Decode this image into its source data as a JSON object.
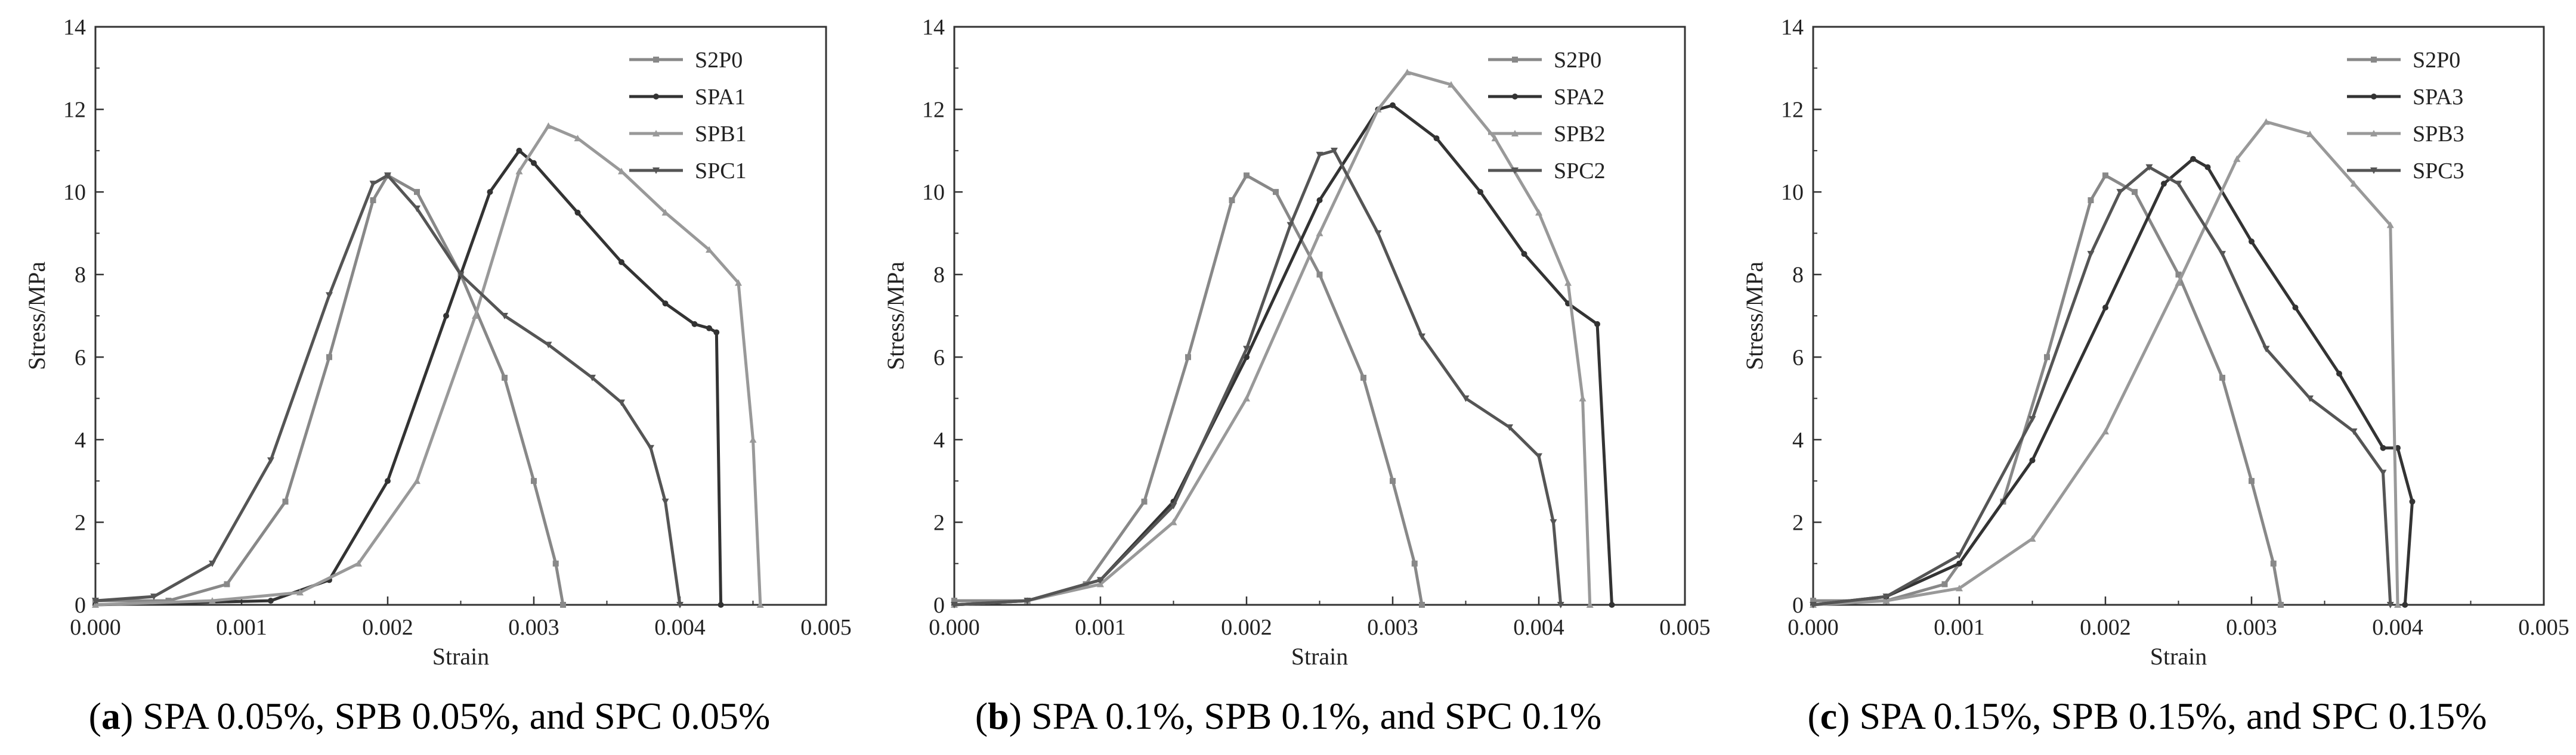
{
  "chart_data": [
    {
      "type": "line",
      "caption_label": "a",
      "caption_text": "SPA 0.05%, SPB 0.05%, and SPC 0.05%",
      "xlabel": "Strain",
      "ylabel": "Stress/MPa",
      "xlim": [
        0,
        0.005
      ],
      "ylim": [
        0,
        14
      ],
      "xticks": [
        "0.000",
        "0.001",
        "0.002",
        "0.003",
        "0.004",
        "0.005"
      ],
      "yticks": [
        "0",
        "2",
        "4",
        "6",
        "8",
        "10",
        "12",
        "14"
      ],
      "legend_position": "top-right",
      "series": [
        {
          "name": "S2P0",
          "color": "#888888",
          "x": [
            0,
            0.0005,
            0.0009,
            0.0013,
            0.0016,
            0.0019,
            0.002,
            0.0022,
            0.0025,
            0.0028,
            0.003,
            0.00315,
            0.0032
          ],
          "y": [
            0.1,
            0.1,
            0.5,
            2.5,
            6.0,
            9.8,
            10.4,
            10.0,
            8.0,
            5.5,
            3.0,
            1.0,
            0
          ]
        },
        {
          "name": "SPA1",
          "color": "#333333",
          "x": [
            0,
            0.0012,
            0.0016,
            0.002,
            0.0024,
            0.0027,
            0.0029,
            0.003,
            0.0033,
            0.0036,
            0.0039,
            0.0041,
            0.0042,
            0.00425,
            0.00428
          ],
          "y": [
            0,
            0.1,
            0.6,
            3.0,
            7.0,
            10.0,
            11.0,
            10.7,
            9.5,
            8.3,
            7.3,
            6.8,
            6.7,
            6.6,
            0
          ]
        },
        {
          "name": "SPB1",
          "color": "#999999",
          "x": [
            0,
            0.0008,
            0.0014,
            0.0018,
            0.0022,
            0.0026,
            0.0029,
            0.0031,
            0.0033,
            0.0036,
            0.0039,
            0.0042,
            0.0044,
            0.0045,
            0.00455
          ],
          "y": [
            0,
            0.1,
            0.3,
            1.0,
            3.0,
            7.0,
            10.5,
            11.6,
            11.3,
            10.5,
            9.5,
            8.6,
            7.8,
            4.0,
            0
          ]
        },
        {
          "name": "SPC1",
          "color": "#555555",
          "x": [
            0,
            0.0004,
            0.0008,
            0.0012,
            0.0016,
            0.0019,
            0.002,
            0.0022,
            0.0025,
            0.0028,
            0.0031,
            0.0034,
            0.0036,
            0.0038,
            0.0039,
            0.004
          ],
          "y": [
            0.1,
            0.2,
            1.0,
            3.5,
            7.5,
            10.2,
            10.4,
            9.6,
            8.0,
            7.0,
            6.3,
            5.5,
            4.9,
            3.8,
            2.5,
            0
          ]
        }
      ]
    },
    {
      "type": "line",
      "caption_label": "b",
      "caption_text": "SPA 0.1%, SPB 0.1%, and SPC 0.1%",
      "xlabel": "Strain",
      "ylabel": "Stress/MPa",
      "xlim": [
        0,
        0.005
      ],
      "ylim": [
        0,
        14
      ],
      "xticks": [
        "0.000",
        "0.001",
        "0.002",
        "0.003",
        "0.004",
        "0.005"
      ],
      "yticks": [
        "0",
        "2",
        "4",
        "6",
        "8",
        "10",
        "12",
        "14"
      ],
      "legend_position": "top-right",
      "series": [
        {
          "name": "S2P0",
          "color": "#888888",
          "x": [
            0,
            0.0005,
            0.0009,
            0.0013,
            0.0016,
            0.0019,
            0.002,
            0.0022,
            0.0025,
            0.0028,
            0.003,
            0.00315,
            0.0032
          ],
          "y": [
            0.1,
            0.1,
            0.5,
            2.5,
            6.0,
            9.8,
            10.4,
            10.0,
            8.0,
            5.5,
            3.0,
            1.0,
            0
          ]
        },
        {
          "name": "SPA2",
          "color": "#333333",
          "x": [
            0,
            0.0005,
            0.001,
            0.0015,
            0.002,
            0.0025,
            0.0029,
            0.003,
            0.0033,
            0.0036,
            0.0039,
            0.0042,
            0.0044,
            0.0045
          ],
          "y": [
            0,
            0.1,
            0.6,
            2.5,
            6.0,
            9.8,
            12.0,
            12.1,
            11.3,
            10.0,
            8.5,
            7.3,
            6.8,
            0
          ]
        },
        {
          "name": "SPB2",
          "color": "#999999",
          "x": [
            0,
            0.0005,
            0.001,
            0.0015,
            0.002,
            0.0025,
            0.0029,
            0.0031,
            0.0034,
            0.0037,
            0.004,
            0.0042,
            0.0043,
            0.00435
          ],
          "y": [
            0,
            0.1,
            0.5,
            2.0,
            5.0,
            9.0,
            12.0,
            12.9,
            12.6,
            11.3,
            9.5,
            7.8,
            5.0,
            0
          ]
        },
        {
          "name": "SPC2",
          "color": "#555555",
          "x": [
            0,
            0.0005,
            0.001,
            0.0015,
            0.002,
            0.0023,
            0.0025,
            0.0026,
            0.0029,
            0.0032,
            0.0035,
            0.0038,
            0.004,
            0.0041,
            0.00415
          ],
          "y": [
            0,
            0.1,
            0.6,
            2.4,
            6.2,
            9.2,
            10.9,
            11.0,
            9.0,
            6.5,
            5.0,
            4.3,
            3.6,
            2.0,
            0
          ]
        }
      ]
    },
    {
      "type": "line",
      "caption_label": "c",
      "caption_text": "SPA 0.15%, SPB 0.15%, and SPC 0.15%",
      "xlabel": "Strain",
      "ylabel": "Stress/MPa",
      "xlim": [
        0,
        0.005
      ],
      "ylim": [
        0,
        14
      ],
      "xticks": [
        "0.000",
        "0.001",
        "0.002",
        "0.003",
        "0.004",
        "0.005"
      ],
      "yticks": [
        "0",
        "2",
        "4",
        "6",
        "8",
        "10",
        "12",
        "14"
      ],
      "legend_position": "top-right",
      "series": [
        {
          "name": "S2P0",
          "color": "#888888",
          "x": [
            0,
            0.0005,
            0.0009,
            0.0013,
            0.0016,
            0.0019,
            0.002,
            0.0022,
            0.0025,
            0.0028,
            0.003,
            0.00315,
            0.0032
          ],
          "y": [
            0.1,
            0.1,
            0.5,
            2.5,
            6.0,
            9.8,
            10.4,
            10.0,
            8.0,
            5.5,
            3.0,
            1.0,
            0
          ]
        },
        {
          "name": "SPA3",
          "color": "#333333",
          "x": [
            0,
            0.0005,
            0.001,
            0.0015,
            0.002,
            0.0024,
            0.0026,
            0.0027,
            0.003,
            0.0033,
            0.0036,
            0.0039,
            0.004,
            0.0041,
            0.00405
          ],
          "y": [
            0,
            0.2,
            1.0,
            3.5,
            7.2,
            10.2,
            10.8,
            10.6,
            8.8,
            7.2,
            5.6,
            3.8,
            3.8,
            2.5,
            0
          ]
        },
        {
          "name": "SPB3",
          "color": "#999999",
          "x": [
            0,
            0.0005,
            0.001,
            0.0015,
            0.002,
            0.0025,
            0.0029,
            0.0031,
            0.0034,
            0.0037,
            0.00395,
            0.004
          ],
          "y": [
            0,
            0.1,
            0.4,
            1.6,
            4.2,
            7.8,
            10.8,
            11.7,
            11.4,
            10.2,
            9.2,
            0
          ]
        },
        {
          "name": "SPC3",
          "color": "#555555",
          "x": [
            0,
            0.0005,
            0.001,
            0.0015,
            0.0019,
            0.0021,
            0.0023,
            0.0025,
            0.0028,
            0.0031,
            0.0034,
            0.0037,
            0.0039,
            0.00395
          ],
          "y": [
            0,
            0.2,
            1.2,
            4.5,
            8.5,
            10.0,
            10.6,
            10.2,
            8.5,
            6.2,
            5.0,
            4.2,
            3.2,
            0
          ]
        }
      ]
    }
  ]
}
